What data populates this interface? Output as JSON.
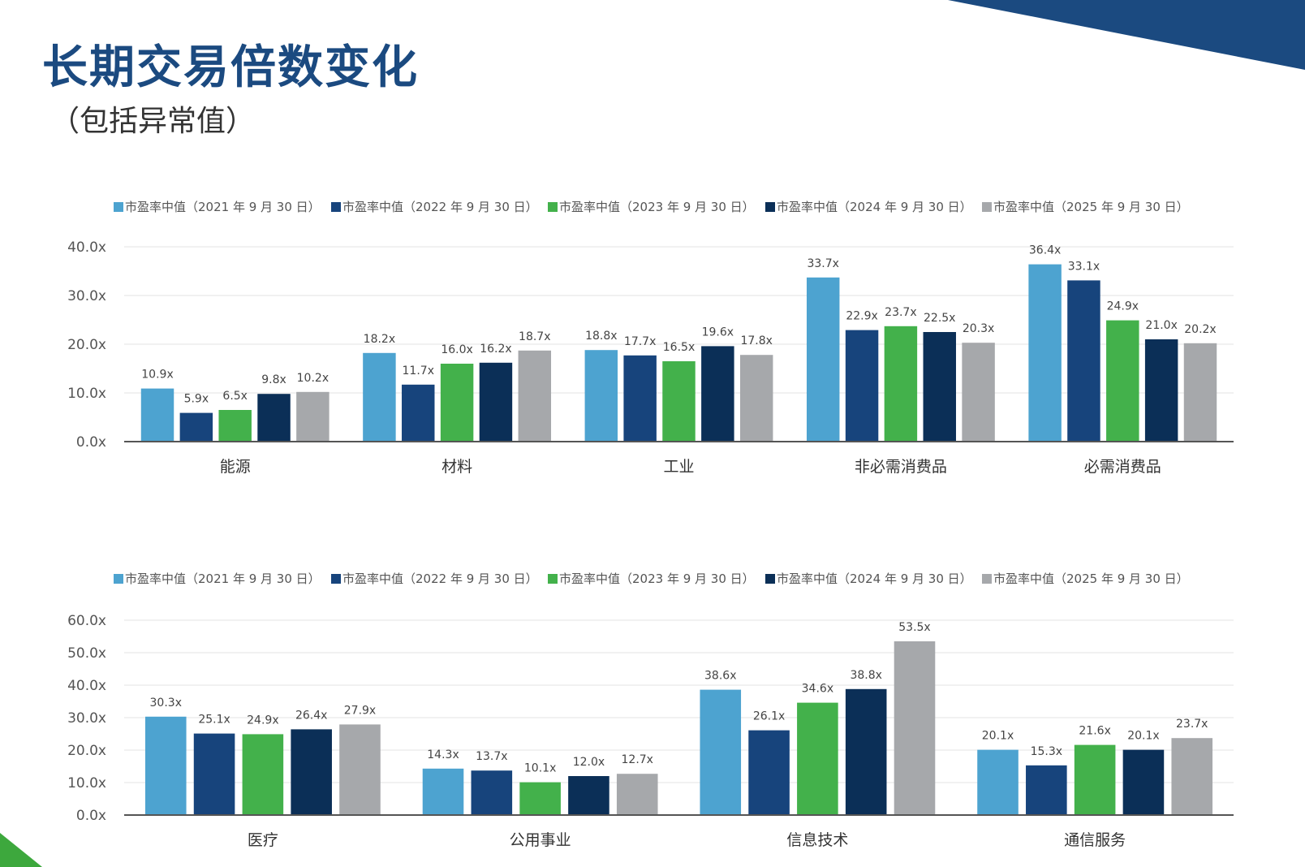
{
  "title": "长期交易倍数变化",
  "subtitle": "（包括异常值）",
  "colors": {
    "accent": "#1b4a80",
    "corner_green": "#3da83d"
  },
  "chart_data": [
    {
      "type": "bar",
      "title": "",
      "categories": [
        "能源",
        "材料",
        "工业",
        "非必需消费品",
        "必需消费品"
      ],
      "ylim": [
        0,
        40
      ],
      "ytick_step": 10,
      "ytick_labels": [
        "0.0x",
        "10.0x",
        "20.0x",
        "30.0x",
        "40.0x"
      ],
      "value_format": "x",
      "grid": true,
      "legend_position": "top",
      "series": [
        {
          "name": "市盈率中值（2021 年 9 月 30 日）",
          "color": "#4da3d0",
          "values": [
            10.9,
            18.2,
            18.8,
            33.7,
            36.4
          ]
        },
        {
          "name": "市盈率中值（2022 年 9 月 30 日）",
          "color": "#17447c",
          "values": [
            5.9,
            11.7,
            17.7,
            22.9,
            33.1
          ]
        },
        {
          "name": "市盈率中值（2023 年 9 月 30 日）",
          "color": "#43b14b",
          "values": [
            6.5,
            16.0,
            16.5,
            23.7,
            24.9
          ]
        },
        {
          "name": "市盈率中值（2024 年 9 月 30 日）",
          "color": "#0b2f57",
          "values": [
            9.8,
            16.2,
            19.6,
            22.5,
            21.0
          ]
        },
        {
          "name": "市盈率中值（2025 年 9 月 30 日）",
          "color": "#a6a8ab",
          "values": [
            10.2,
            18.7,
            17.8,
            20.3,
            20.2
          ]
        }
      ]
    },
    {
      "type": "bar",
      "title": "",
      "categories": [
        "医疗",
        "公用事业",
        "信息技术",
        "通信服务"
      ],
      "ylim": [
        0,
        60
      ],
      "ytick_step": 10,
      "ytick_labels": [
        "0.0x",
        "10.0x",
        "20.0x",
        "30.0x",
        "40.0x",
        "50.0x",
        "60.0x"
      ],
      "value_format": "x",
      "grid": true,
      "legend_position": "top",
      "series": [
        {
          "name": "市盈率中值（2021 年 9 月 30 日）",
          "color": "#4da3d0",
          "values": [
            30.3,
            14.3,
            38.6,
            20.1
          ]
        },
        {
          "name": "市盈率中值（2022 年 9 月 30 日）",
          "color": "#17447c",
          "values": [
            25.1,
            13.7,
            26.1,
            15.3
          ]
        },
        {
          "name": "市盈率中值（2023 年 9 月 30 日）",
          "color": "#43b14b",
          "values": [
            24.9,
            10.1,
            34.6,
            21.6
          ]
        },
        {
          "name": "市盈率中值（2024 年 9 月 30 日）",
          "color": "#0b2f57",
          "values": [
            26.4,
            12.0,
            38.8,
            20.1
          ]
        },
        {
          "name": "市盈率中值（2025 年 9 月 30 日）",
          "color": "#a6a8ab",
          "values": [
            27.9,
            12.7,
            53.5,
            23.7
          ]
        }
      ]
    }
  ]
}
